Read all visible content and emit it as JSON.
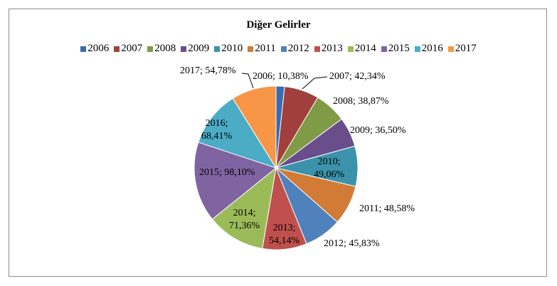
{
  "chart_data": {
    "type": "pie",
    "title": "Diğer Gelirler",
    "legend_position": "top",
    "categories": [
      "2006",
      "2007",
      "2008",
      "2009",
      "2010",
      "2011",
      "2012",
      "2013",
      "2014",
      "2015",
      "2016",
      "2017"
    ],
    "values": [
      10.38,
      42.34,
      38.87,
      36.5,
      49.06,
      48.58,
      45.83,
      54.14,
      71.36,
      98.1,
      68.41,
      54.78
    ],
    "data_labels": [
      "2006; 10,38%",
      "2007; 42,34%",
      "2008; 38,87%",
      "2009; 36,50%",
      "2010; 49,06%",
      "2011; 48,58%",
      "2012; 45,83%",
      "2013; 54,14%",
      "2014; 71,36%",
      "2015; 98,10%",
      "2016; 68,41%",
      "2017; 54,78%"
    ],
    "colors": [
      "#3A6BAE",
      "#A13F3C",
      "#7F9B46",
      "#6A4E8C",
      "#3B93AB",
      "#D27B36",
      "#4F81BD",
      "#C0504D",
      "#9BBB59",
      "#8064A2",
      "#4BACC6",
      "#F79646"
    ]
  }
}
